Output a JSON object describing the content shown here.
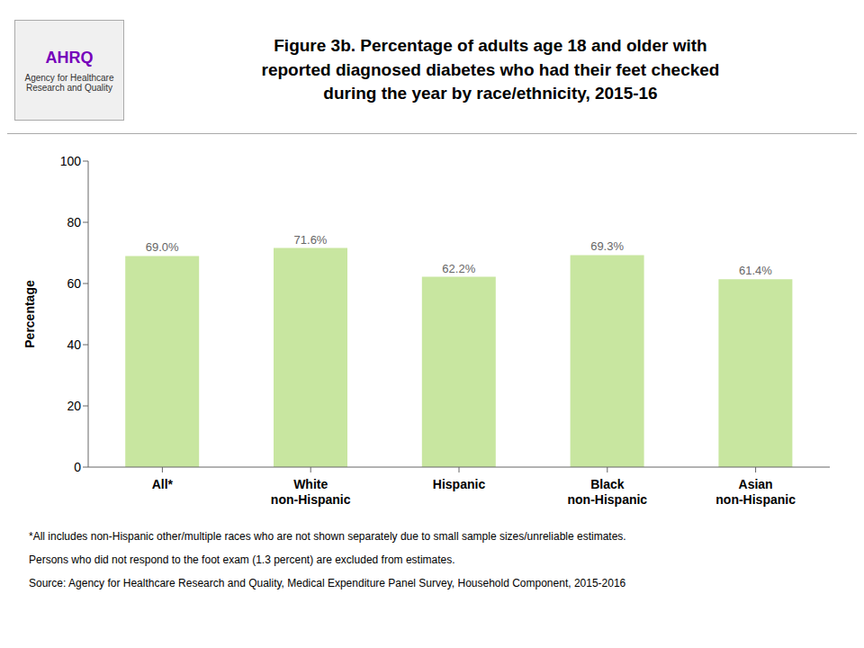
{
  "chart_data": {
    "type": "bar",
    "title": "Figure 3b. Percentage of adults age 18 and older with\nreported diagnosed diabetes who had their feet checked\nduring the year by race/ethnicity, 2015-16",
    "categories": [
      "All*",
      "White\nnon-Hispanic",
      "Hispanic",
      "Black\nnon-Hispanic",
      "Asian\nnon-Hispanic"
    ],
    "values": [
      69.0,
      71.6,
      62.2,
      69.3,
      61.4
    ],
    "value_labels": [
      "69.0%",
      "71.6%",
      "62.2%",
      "69.3%",
      "61.4%"
    ],
    "data_labels": true,
    "color": "#c8e6a0",
    "ylabel": "Percentage",
    "ylim": [
      0,
      100
    ],
    "yticks": [
      0,
      20,
      40,
      60,
      80,
      100
    ],
    "grid": false,
    "annotations": [
      "*All includes non-Hispanic other/multiple races who are not shown separately due to small sample sizes/unreliable estimates.",
      "Persons who did not respond to the foot exam (1.3 percent) are excluded from estimates.",
      "Source: Agency for Healthcare Research and Quality, Medical Expenditure Panel Survey, Household Component, 2015-2016",
      "AHRQ",
      "Agency for Healthcare\nResearch and Quality"
    ]
  }
}
